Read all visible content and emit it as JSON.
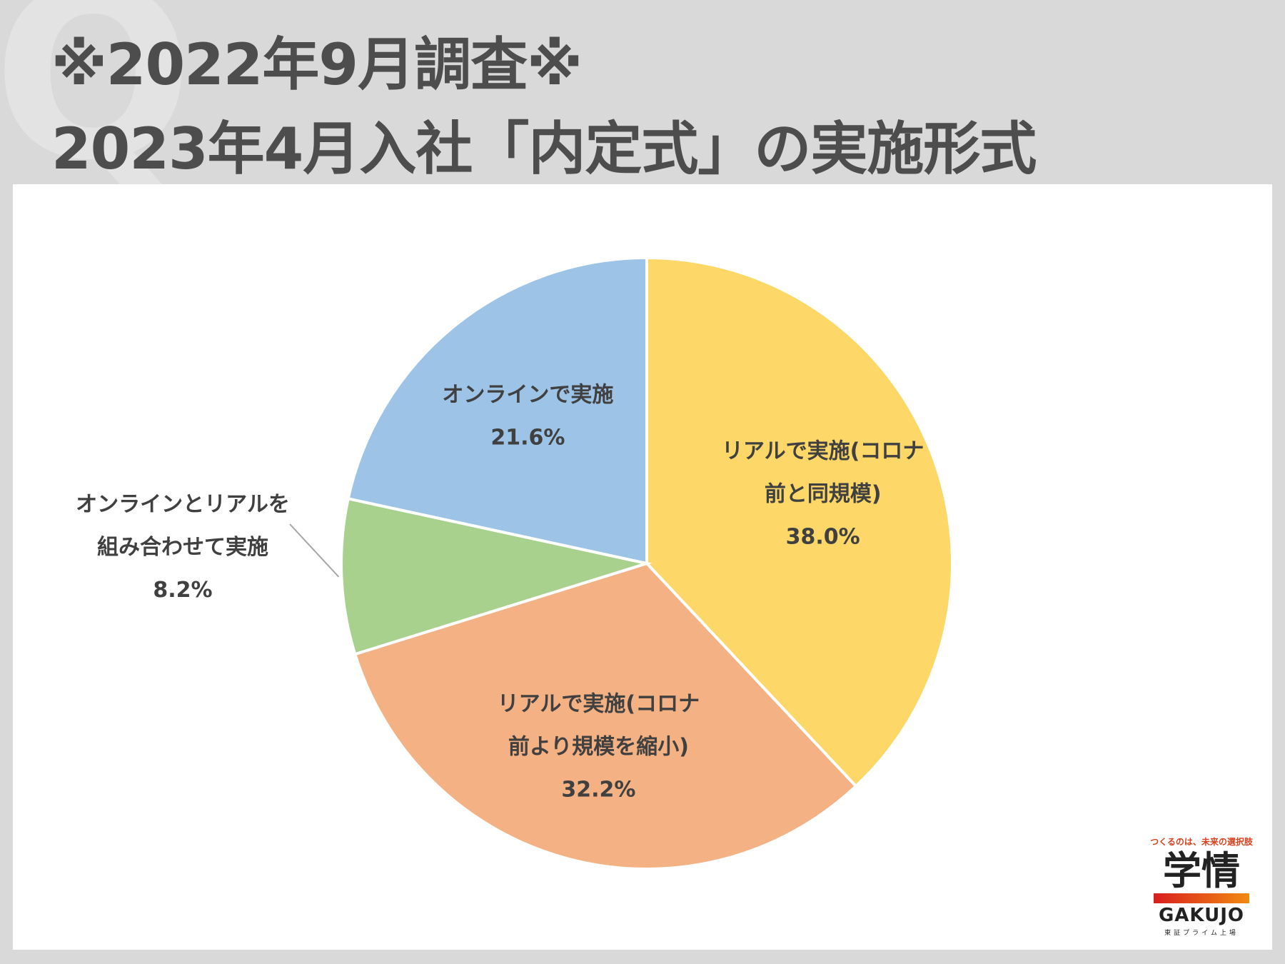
{
  "header": {
    "watermark": "Q",
    "title_line1": "※2022年9月調査※",
    "title_line2": "2023年4月入社「内定式」の実施形式"
  },
  "chart_data": {
    "type": "pie",
    "title": "2023年4月入社「内定式」の実施形式",
    "start_angle_deg": 0,
    "direction": "clockwise",
    "slices": [
      {
        "lines": [
          "リアルで実施(コロナ",
          "前と同規模)"
        ],
        "value": 38.0,
        "value_label": "38.0%",
        "color": "#fdd868",
        "label_placement": "inside"
      },
      {
        "lines": [
          "リアルで実施(コロナ",
          "前より規模を縮小)"
        ],
        "value": 32.2,
        "value_label": "32.2%",
        "color": "#f4b183",
        "label_placement": "inside"
      },
      {
        "lines": [
          "オンラインとリアルを",
          "組み合わせて実施"
        ],
        "value": 8.2,
        "value_label": "8.2%",
        "color": "#a9d18e",
        "label_placement": "outside-left"
      },
      {
        "lines": [
          "オンラインで実施"
        ],
        "value": 21.6,
        "value_label": "21.6%",
        "color": "#9dc3e6",
        "label_placement": "inside"
      }
    ]
  },
  "logo": {
    "tagline": "つくるのは、未来の選択肢",
    "name": "学情",
    "name_en": "GAKUJO",
    "sub": "東証プライム上場",
    "bar_colors": [
      "#d81e1e",
      "#f28a12"
    ]
  }
}
